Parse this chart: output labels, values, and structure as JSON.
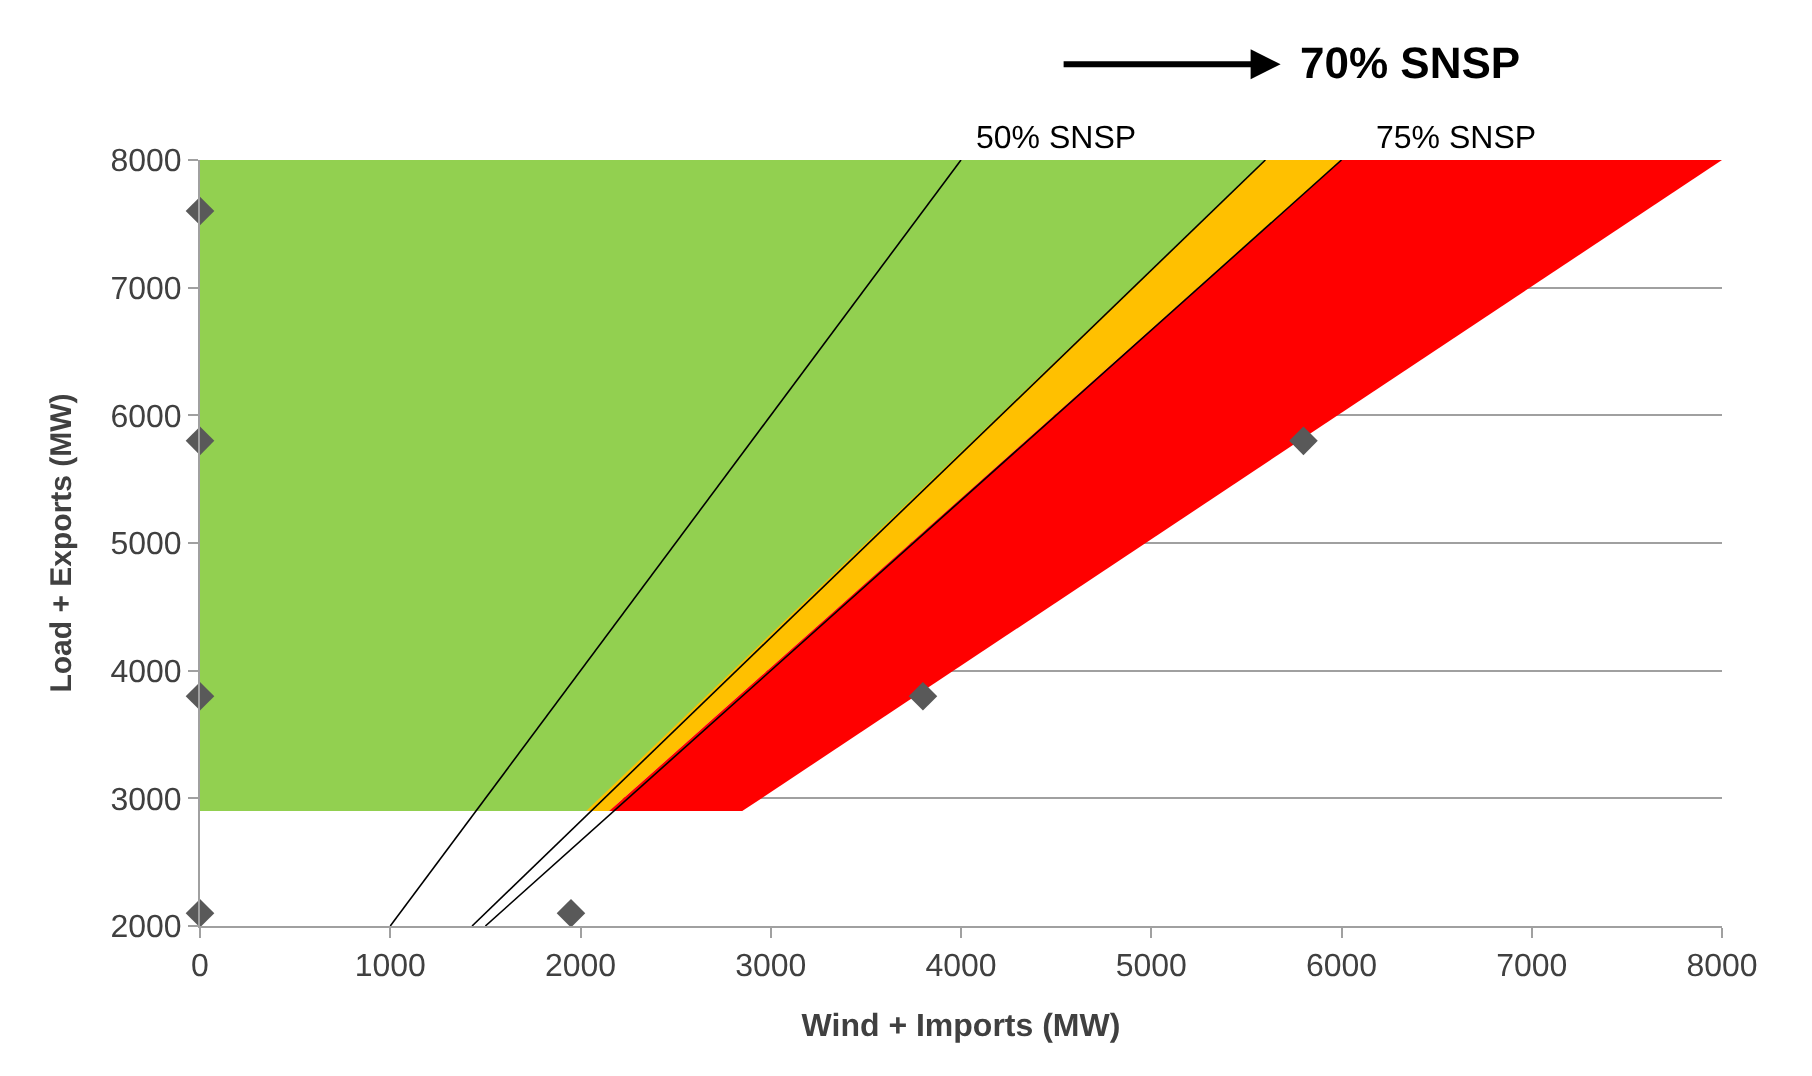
{
  "chart_data": {
    "type": "area",
    "xlabel": "Wind + Imports (MW)",
    "ylabel": "Load + Exports (MW)",
    "xlim": [
      0,
      8000
    ],
    "xticks": [
      0,
      1000,
      2000,
      3000,
      4000,
      5000,
      6000,
      7000,
      8000
    ],
    "ylim": [
      2000,
      8000
    ],
    "yticks": [
      2000,
      3000,
      4000,
      5000,
      6000,
      7000,
      8000
    ],
    "grid": "y",
    "legend": false,
    "series": [
      {
        "color": "#92d050",
        "x": [
          0,
          2150,
          5600,
          0
        ],
        "values": [
          2900,
          2900,
          8000,
          8000
        ]
      },
      {
        "color": "#ffc000",
        "x": [
          2030,
          2150,
          6000,
          5600
        ],
        "values": [
          2900,
          2900,
          8000,
          8000
        ]
      },
      {
        "color": "#ff0000",
        "x": [
          2150,
          2850,
          8000,
          6000
        ],
        "values": [
          2900,
          2900,
          8000,
          8000
        ]
      },
      {
        "type": "line",
        "color": "#000000",
        "x": [
          1000,
          4000
        ],
        "values": [
          2000,
          8000
        ]
      },
      {
        "type": "line",
        "color": "#000000",
        "x": [
          1430,
          5600
        ],
        "values": [
          2000,
          8000
        ]
      },
      {
        "type": "line",
        "color": "#000000",
        "x": [
          1500,
          6000
        ],
        "values": [
          2000,
          8000
        ]
      },
      {
        "type": "scatter",
        "color": "#595959",
        "marker": "diamond",
        "x": [
          0,
          0,
          0,
          0,
          1950,
          3800,
          5800
        ],
        "values": [
          2100,
          3800,
          5800,
          7600,
          2100,
          3800,
          5800
        ]
      }
    ],
    "annotations": [
      {
        "text": "50% SNSP",
        "x": 4500,
        "y": 8000
      },
      {
        "text": "75% SNSP",
        "x": 6600,
        "y": 8000
      },
      "70% SNSP"
    ]
  }
}
